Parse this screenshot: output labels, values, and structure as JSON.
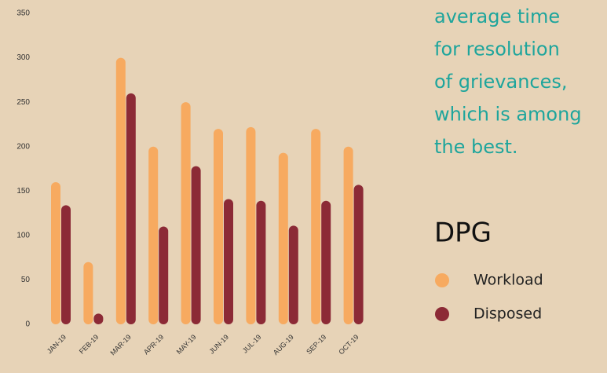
{
  "chart_data": {
    "type": "bar",
    "annotation": [
      "average time",
      "for resolution",
      "of grievances,",
      "which is among",
      "the best."
    ],
    "legend_title": "DPG",
    "categories": [
      "JAN-19",
      "FEB-19",
      "MAR-19",
      "APR-19",
      "MAY-19",
      "JUN-19",
      "JUL-19",
      "AUG-19",
      "SEP-19",
      "OCT-19"
    ],
    "series": [
      {
        "name": "Workload",
        "color": "#f7aa60",
        "values": [
          160,
          70,
          300,
          200,
          250,
          220,
          222,
          193,
          220,
          200
        ]
      },
      {
        "name": "Disposed",
        "color": "#8c2a36",
        "values": [
          134,
          12,
          260,
          110,
          178,
          141,
          139,
          111,
          139,
          157
        ]
      }
    ],
    "ylim": [
      0,
      350
    ],
    "yticks": [
      0,
      50,
      100,
      150,
      200,
      250,
      300,
      350
    ],
    "grid": false
  }
}
